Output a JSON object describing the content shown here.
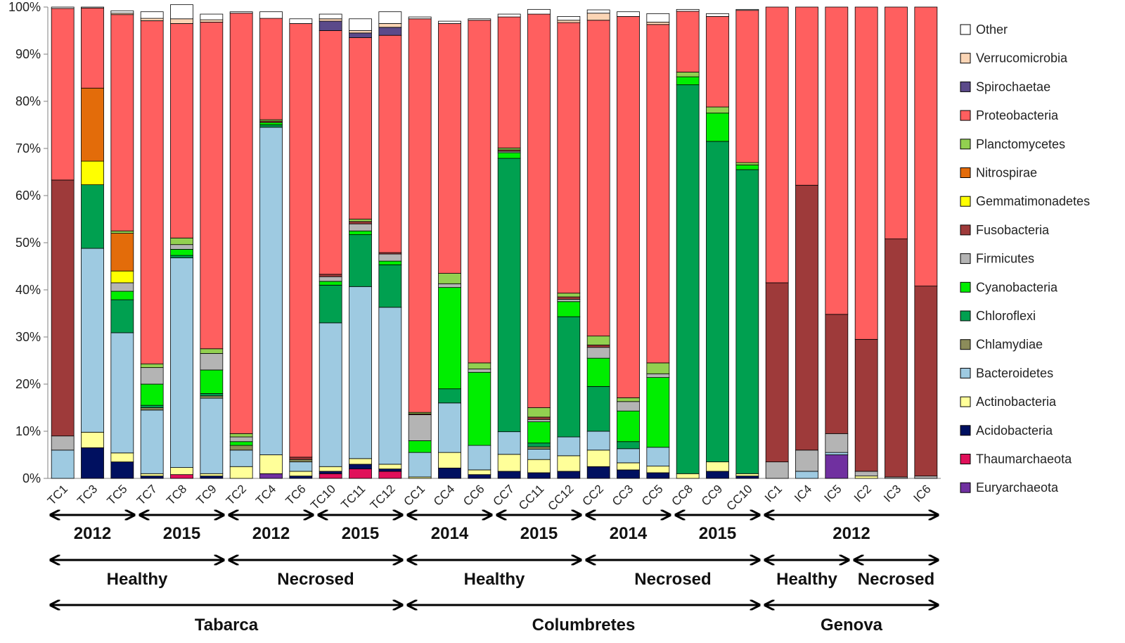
{
  "chart_data": {
    "type": "bar",
    "stacked": true,
    "ylim": [
      0,
      100
    ],
    "yticks": [
      "0%",
      "10%",
      "20%",
      "30%",
      "40%",
      "50%",
      "60%",
      "70%",
      "80%",
      "90%",
      "100%"
    ],
    "categories": [
      "TC1",
      "TC3",
      "TC5",
      "TC7",
      "TC8",
      "TC9",
      "TC2",
      "TC4",
      "TC6",
      "TC10",
      "TC11",
      "TC12",
      "CC1",
      "CC4",
      "CC6",
      "CC7",
      "CC11",
      "CC12",
      "CC2",
      "CC3",
      "CC5",
      "CC8",
      "CC9",
      "CC10",
      "IC1",
      "IC4",
      "IC5",
      "IC2",
      "IC3",
      "IC6"
    ],
    "series": [
      {
        "name": "Euryarchaeota",
        "color": "#7030a0",
        "values": [
          0,
          0,
          0,
          0,
          0,
          0,
          0,
          1,
          0,
          0,
          0,
          0,
          0,
          0,
          0,
          0,
          0,
          0,
          0,
          0,
          0,
          0,
          0,
          0,
          0,
          0,
          5,
          0,
          0,
          0
        ]
      },
      {
        "name": "Thaumarchaeota",
        "color": "#e0105a",
        "values": [
          0,
          0,
          0,
          0,
          0.8,
          0,
          0,
          0,
          0,
          1,
          2,
          1.5,
          0,
          0,
          0,
          0,
          0,
          0,
          0,
          0,
          0,
          0,
          0,
          0,
          0,
          0,
          0,
          0,
          0,
          0
        ]
      },
      {
        "name": "Acidobacteria",
        "color": "#001060",
        "values": [
          0,
          6.5,
          3.5,
          0.5,
          0,
          0.5,
          0,
          0,
          0.5,
          0.5,
          1,
          0.5,
          0,
          2.2,
          0.8,
          1.5,
          1.2,
          1.5,
          2.5,
          1.8,
          1.2,
          0,
          1.5,
          0.5,
          0,
          0,
          0,
          0,
          0,
          0
        ]
      },
      {
        "name": "Actinobacteria",
        "color": "#ffff99",
        "values": [
          0,
          3.3,
          1.9,
          0.5,
          1.5,
          0.5,
          2.5,
          4,
          1,
          1,
          1.2,
          1,
          0.3,
          3.3,
          1,
          3.6,
          2.8,
          3.3,
          3.5,
          1.5,
          1.4,
          1,
          2,
          0.5,
          0,
          0,
          0,
          0.5,
          0,
          0
        ]
      },
      {
        "name": "Bacteroidetes",
        "color": "#9ecae1",
        "values": [
          6,
          39,
          25.5,
          13.5,
          44.5,
          16,
          3.5,
          69.5,
          2,
          30.5,
          36.5,
          33.3,
          5.2,
          10.5,
          5.2,
          4.8,
          2.2,
          4,
          4,
          3,
          4,
          0,
          0,
          0,
          0,
          1.5,
          0.5,
          0,
          0,
          0
        ]
      },
      {
        "name": "Chlamydiae",
        "color": "#8c8c5a",
        "values": [
          0,
          0,
          0,
          0.5,
          0,
          0.5,
          1,
          0,
          0.5,
          0,
          0,
          0,
          0,
          0,
          0,
          0,
          0.5,
          0,
          0,
          0,
          0,
          0,
          0,
          0,
          0,
          0,
          0,
          0,
          0,
          0
        ]
      },
      {
        "name": "Chloroflexi",
        "color": "#00a050",
        "values": [
          0,
          13.5,
          7,
          0.5,
          0.5,
          0.5,
          0,
          0.5,
          0,
          8,
          11,
          9,
          0,
          3,
          0,
          58,
          0.8,
          25.5,
          9.5,
          1.5,
          0,
          82.5,
          68,
          64.5,
          0,
          0,
          0,
          0,
          0,
          0
        ]
      },
      {
        "name": "Cyanobacteria",
        "color": "#00ee00",
        "values": [
          0,
          0,
          1.8,
          4.5,
          1.3,
          5,
          0.8,
          0.5,
          0,
          0.8,
          0.8,
          0.8,
          2.5,
          21.5,
          15.5,
          1.2,
          4.5,
          3.2,
          6,
          6.5,
          14.8,
          1.7,
          6,
          1,
          0,
          0,
          0,
          0,
          0,
          0
        ]
      },
      {
        "name": "Firmicutes",
        "color": "#b4b4b4",
        "values": [
          3,
          0,
          1.8,
          3.5,
          1,
          3.5,
          1,
          0,
          0,
          1,
          1.5,
          1.5,
          5.5,
          0.8,
          0.7,
          0.3,
          0.5,
          0.5,
          2.3,
          2,
          0.8,
          0,
          0,
          0,
          3.5,
          4.5,
          4,
          1,
          0.3,
          0.5
        ]
      },
      {
        "name": "Fusobacteria",
        "color": "#9e3a3a",
        "values": [
          54.3,
          0,
          0,
          0,
          0,
          0,
          0,
          0.3,
          0.5,
          0.5,
          0.5,
          0.3,
          0.2,
          0,
          0,
          0.3,
          0.5,
          0.5,
          0.5,
          0,
          0,
          0,
          0,
          0,
          38,
          56.2,
          25.3,
          28,
          50.5,
          40.3
        ]
      },
      {
        "name": "Gemmatimonadetes",
        "color": "#ffff00",
        "values": [
          0,
          5,
          2.5,
          0,
          0,
          0,
          0,
          0,
          0,
          0,
          0,
          0,
          0,
          0,
          0,
          0,
          0,
          0,
          0,
          0,
          0,
          0,
          0,
          0,
          0,
          0,
          0,
          0,
          0,
          0
        ]
      },
      {
        "name": "Nitrospirae",
        "color": "#e36c0a",
        "values": [
          0,
          15.5,
          8,
          0,
          0,
          0,
          0,
          0,
          0,
          0,
          0,
          0,
          0,
          0,
          0,
          0,
          0,
          0,
          0,
          0,
          0,
          0,
          0,
          0,
          0,
          0,
          0,
          0,
          0,
          0
        ]
      },
      {
        "name": "Planctomycetes",
        "color": "#92d050",
        "values": [
          0,
          0,
          0.5,
          0.8,
          1.4,
          1,
          0.7,
          0.3,
          0,
          0,
          0.5,
          0,
          0.3,
          2.2,
          1.3,
          0.4,
          2,
          0.8,
          1.9,
          0.8,
          2.3,
          1,
          1.3,
          0.5,
          0,
          0,
          0,
          0,
          0,
          0
        ]
      },
      {
        "name": "Proteobacteria",
        "color": "#ff5f5f",
        "values": [
          36.4,
          17,
          45.9,
          72.8,
          45.5,
          69.3,
          89.2,
          21.5,
          92,
          51.7,
          38.5,
          46.1,
          83.5,
          53,
          72.7,
          27.8,
          83.5,
          57.4,
          67,
          80.9,
          71.8,
          12.9,
          19.2,
          32.3,
          58.5,
          37.8,
          65.2,
          70.5,
          49.2,
          59.2
        ]
      },
      {
        "name": "Spirochaetae",
        "color": "#5b4a8a",
        "values": [
          0,
          0,
          0,
          0,
          0,
          0,
          0,
          0,
          0,
          2,
          1,
          1.7,
          0,
          0,
          0,
          0,
          0,
          0,
          0,
          0,
          0,
          0,
          0,
          0,
          0,
          0,
          0,
          0,
          0,
          0
        ]
      },
      {
        "name": "Verrucomicrobia",
        "color": "#fbd5b5",
        "values": [
          0,
          0,
          0.3,
          0.5,
          1,
          0.5,
          0,
          0,
          0,
          0.5,
          0.5,
          0.8,
          0,
          0,
          0,
          0,
          0,
          0.5,
          1.5,
          0,
          0.5,
          0,
          0,
          0,
          0,
          0,
          0,
          0,
          0,
          0
        ]
      },
      {
        "name": "Other",
        "color": "#ffffff",
        "values": [
          0.3,
          0.2,
          0.5,
          1.4,
          3,
          1.2,
          0.3,
          1.4,
          1,
          1,
          2.5,
          2.5,
          0.4,
          0.5,
          0.3,
          0.6,
          1,
          0.8,
          0.7,
          1,
          1.8,
          0.4,
          0.6,
          0.2,
          0,
          0,
          0,
          0,
          0,
          0
        ]
      }
    ],
    "legend_order": [
      "Other",
      "Verrucomicrobia",
      "Spirochaetae",
      "Proteobacteria",
      "Planctomycetes",
      "Nitrospirae",
      "Gemmatimonadetes",
      "Fusobacteria",
      "Firmicutes",
      "Cyanobacteria",
      "Chloroflexi",
      "Chlamydiae",
      "Bacteroidetes",
      "Actinobacteria",
      "Acidobacteria",
      "Thaumarchaeota",
      "Euryarchaeota"
    ],
    "legend_position": "right",
    "groups": {
      "years": [
        {
          "label": "2012",
          "from": 0,
          "to": 2
        },
        {
          "label": "2015",
          "from": 3,
          "to": 5
        },
        {
          "label": "2012",
          "from": 6,
          "to": 8
        },
        {
          "label": "2015",
          "from": 9,
          "to": 11
        },
        {
          "label": "2014",
          "from": 12,
          "to": 14
        },
        {
          "label": "2015",
          "from": 15,
          "to": 17
        },
        {
          "label": "2014",
          "from": 18,
          "to": 20
        },
        {
          "label": "2015",
          "from": 21,
          "to": 23
        },
        {
          "label": "2012",
          "from": 24,
          "to": 29
        }
      ],
      "conditions": [
        {
          "label": "Healthy",
          "from": 0,
          "to": 5
        },
        {
          "label": "Necrosed",
          "from": 6,
          "to": 11
        },
        {
          "label": "Healthy",
          "from": 12,
          "to": 17
        },
        {
          "label": "Necrosed",
          "from": 18,
          "to": 23
        },
        {
          "label": "Healthy",
          "from": 24,
          "to": 26
        },
        {
          "label": "Necrosed",
          "from": 27,
          "to": 29
        }
      ],
      "sites": [
        {
          "label": "Tabarca",
          "from": 0,
          "to": 11
        },
        {
          "label": "Columbretes",
          "from": 12,
          "to": 23
        },
        {
          "label": "Genova",
          "from": 24,
          "to": 29
        }
      ]
    }
  }
}
